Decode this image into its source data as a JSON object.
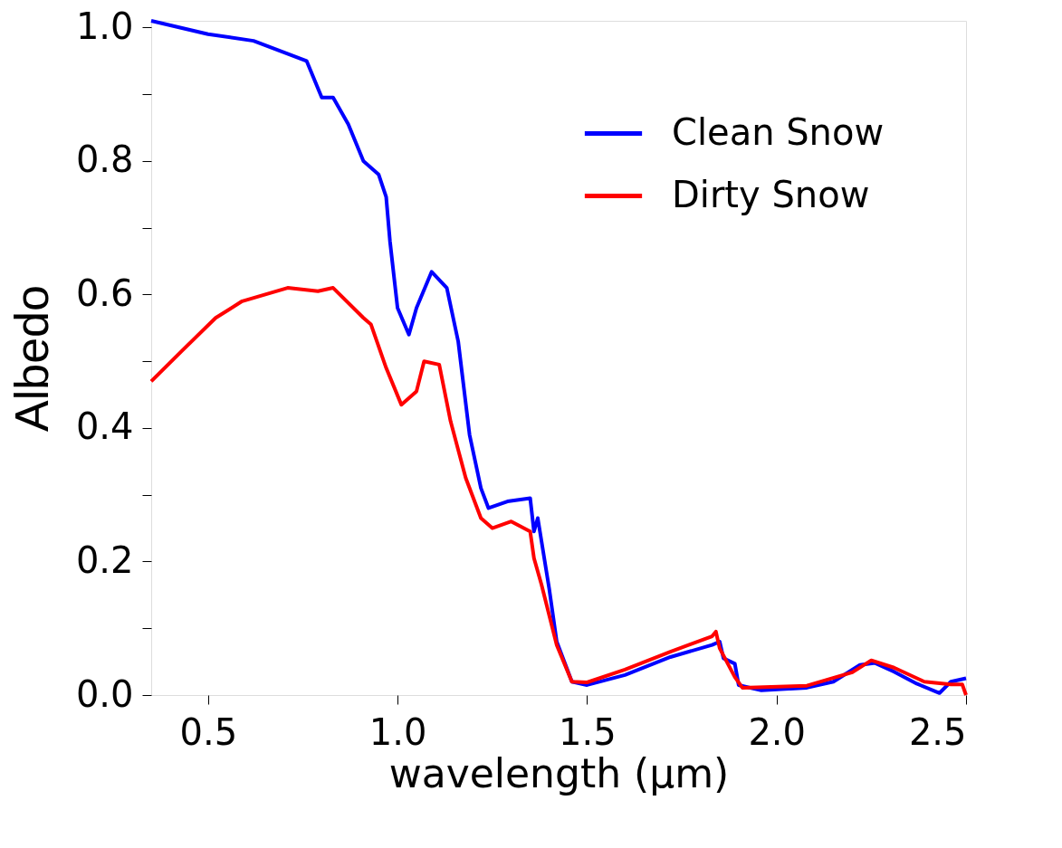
{
  "chart_data": {
    "type": "line",
    "xlabel": "wavelength (μm)",
    "ylabel": "Albedo",
    "xlim": [
      0.35,
      2.5
    ],
    "ylim": [
      0,
      1.01
    ],
    "xticks": [
      {
        "value": 0.5,
        "label": "0.5"
      },
      {
        "value": 1.0,
        "label": "1.0"
      },
      {
        "value": 1.5,
        "label": "1.5"
      },
      {
        "value": 2.0,
        "label": "2.0"
      },
      {
        "value": 2.5,
        "label": "2.5"
      }
    ],
    "yticks": [
      {
        "value": 0,
        "label": "0.0"
      },
      {
        "value": 0.1,
        "label": null
      },
      {
        "value": 0.2,
        "label": "0.2"
      },
      {
        "value": 0.3,
        "label": null
      },
      {
        "value": 0.4,
        "label": "0.4"
      },
      {
        "value": 0.5,
        "label": null
      },
      {
        "value": 0.6,
        "label": "0.6"
      },
      {
        "value": 0.7,
        "label": null
      },
      {
        "value": 0.8,
        "label": "0.8"
      },
      {
        "value": 0.9,
        "label": null
      },
      {
        "value": 1.0,
        "label": "1.0"
      }
    ],
    "grid": false,
    "legend": "top right",
    "line_style": "solid",
    "marker": "none",
    "series": [
      {
        "name": "Clean Snow",
        "color": "#0000ff",
        "x": [
          0.35,
          0.5,
          0.62,
          0.76,
          0.8,
          0.83,
          0.87,
          0.91,
          0.95,
          0.97,
          0.98,
          1.0,
          1.03,
          1.05,
          1.09,
          1.13,
          1.16,
          1.19,
          1.22,
          1.24,
          1.29,
          1.35,
          1.36,
          1.37,
          1.4,
          1.42,
          1.46,
          1.5,
          1.6,
          1.72,
          1.83,
          1.85,
          1.86,
          1.89,
          1.9,
          1.96,
          2.08,
          2.15,
          2.22,
          2.26,
          2.31,
          2.37,
          2.43,
          2.46,
          2.5
        ],
        "values": [
          1.01,
          0.99,
          0.98,
          0.95,
          0.895,
          0.895,
          0.855,
          0.8,
          0.78,
          0.746,
          0.68,
          0.58,
          0.54,
          0.58,
          0.634,
          0.61,
          0.53,
          0.39,
          0.31,
          0.28,
          0.29,
          0.295,
          0.245,
          0.265,
          0.16,
          0.08,
          0.02,
          0.015,
          0.03,
          0.057,
          0.075,
          0.08,
          0.055,
          0.047,
          0.015,
          0.007,
          0.011,
          0.02,
          0.045,
          0.048,
          0.035,
          0.017,
          0.003,
          0.02,
          0.025
        ]
      },
      {
        "name": "Dirty Snow",
        "color": "#ff0000",
        "x": [
          0.35,
          0.43,
          0.52,
          0.59,
          0.71,
          0.79,
          0.83,
          0.91,
          0.93,
          0.97,
          1.01,
          1.05,
          1.07,
          1.11,
          1.14,
          1.18,
          1.22,
          1.25,
          1.3,
          1.35,
          1.36,
          1.38,
          1.42,
          1.46,
          1.5,
          1.6,
          1.72,
          1.83,
          1.84,
          1.85,
          1.89,
          1.91,
          2.08,
          2.2,
          2.25,
          2.31,
          2.39,
          2.46,
          2.49,
          2.5
        ],
        "values": [
          0.47,
          0.515,
          0.565,
          0.59,
          0.61,
          0.605,
          0.61,
          0.565,
          0.555,
          0.49,
          0.435,
          0.455,
          0.5,
          0.495,
          0.41,
          0.325,
          0.265,
          0.25,
          0.26,
          0.245,
          0.205,
          0.165,
          0.075,
          0.02,
          0.019,
          0.038,
          0.065,
          0.088,
          0.095,
          0.07,
          0.027,
          0.011,
          0.014,
          0.034,
          0.052,
          0.041,
          0.02,
          0.016,
          0.016,
          0.0
        ]
      }
    ]
  }
}
